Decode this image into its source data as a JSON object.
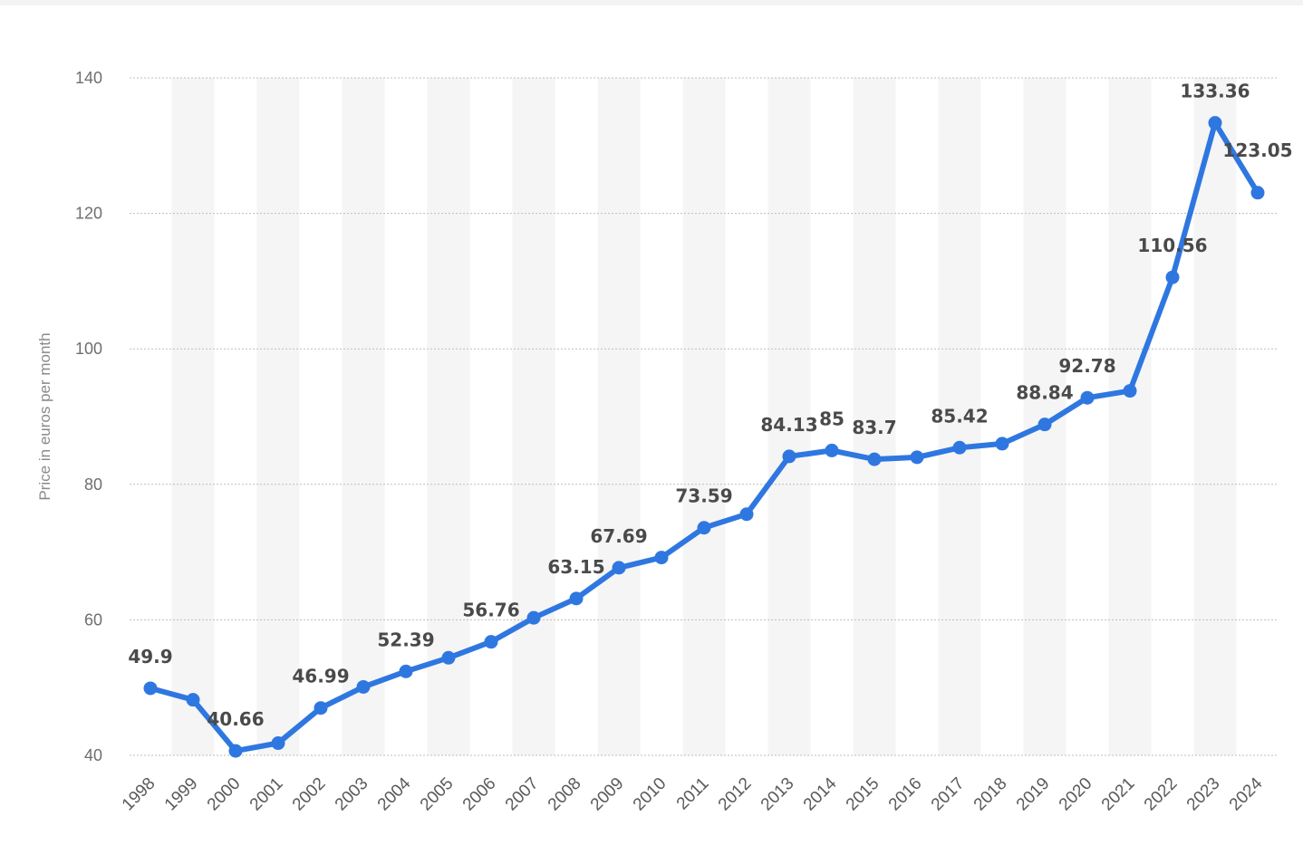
{
  "chart_data": {
    "type": "line",
    "title": "",
    "xlabel": "",
    "ylabel": "Price in euros per month",
    "ylim": [
      40,
      140
    ],
    "yticks": [
      40,
      60,
      80,
      100,
      120,
      140
    ],
    "grid": true,
    "legend": "none",
    "colors": {
      "line": "#2f77e0",
      "band": "#f5f5f5",
      "grid": "#bdbdbd"
    },
    "x": [
      "1998",
      "1999",
      "2000",
      "2001",
      "2002",
      "2003",
      "2004",
      "2005",
      "2006",
      "2007",
      "2008",
      "2009",
      "2010",
      "2011",
      "2012",
      "2013",
      "2014",
      "2015",
      "2016",
      "2017",
      "2018",
      "2019",
      "2020",
      "2021",
      "2022",
      "2023",
      "2024"
    ],
    "values": [
      49.9,
      48.2,
      40.66,
      41.8,
      46.99,
      50.1,
      52.39,
      54.4,
      56.76,
      60.3,
      63.15,
      67.69,
      69.2,
      73.59,
      75.6,
      84.13,
      85,
      83.7,
      84.0,
      85.42,
      86.0,
      88.84,
      92.78,
      93.8,
      110.56,
      133.36,
      123.05
    ],
    "labeled_values": [
      {
        "index": 0,
        "text": "49.9"
      },
      {
        "index": 2,
        "text": "40.66"
      },
      {
        "index": 4,
        "text": "46.99"
      },
      {
        "index": 6,
        "text": "52.39"
      },
      {
        "index": 8,
        "text": "56.76"
      },
      {
        "index": 10,
        "text": "63.15"
      },
      {
        "index": 11,
        "text": "67.69"
      },
      {
        "index": 13,
        "text": "73.59"
      },
      {
        "index": 15,
        "text": "84.13"
      },
      {
        "index": 16,
        "text": "85"
      },
      {
        "index": 17,
        "text": "83.7"
      },
      {
        "index": 19,
        "text": "85.42"
      },
      {
        "index": 21,
        "text": "88.84"
      },
      {
        "index": 22,
        "text": "92.78"
      },
      {
        "index": 24,
        "text": "110.56"
      },
      {
        "index": 25,
        "text": "133.36"
      },
      {
        "index": 26,
        "text": "123.05"
      }
    ]
  }
}
